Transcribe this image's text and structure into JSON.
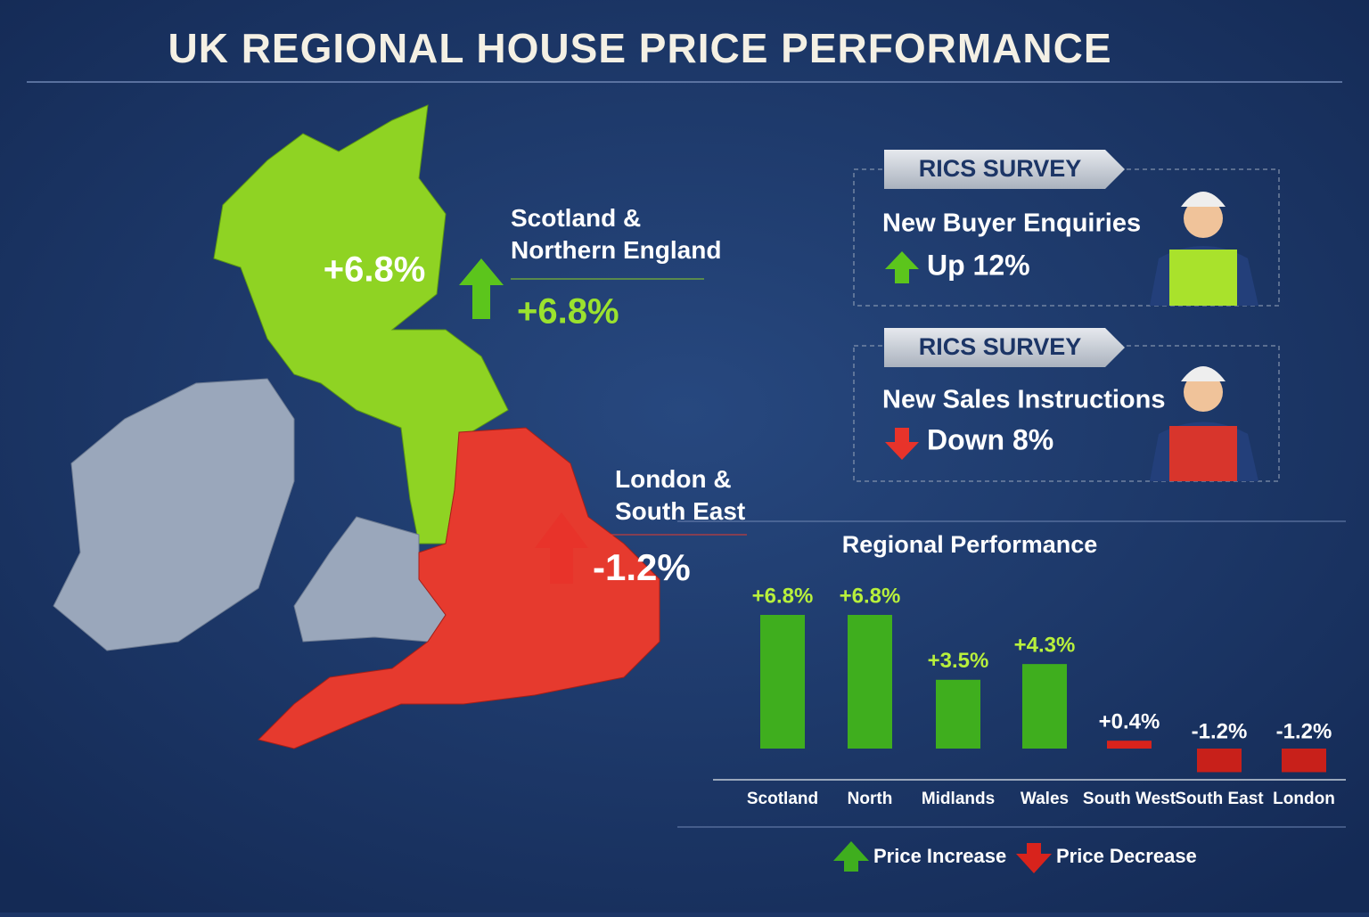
{
  "title": "UK Regional House Price Performance",
  "map": {
    "regions": [
      {
        "name": "Scotland & Northern England",
        "map_label": "+6.8%",
        "change_label": "+6.8%"
      },
      {
        "name": "London & South East",
        "change_label": "-1.2%"
      }
    ]
  },
  "surveys": [
    {
      "header": "RICS SURVEY",
      "metric": "New Buyer Enquiries",
      "change": "Up 12%"
    },
    {
      "header": "RICS SURVEY",
      "metric": "New Sales Instructions",
      "change": "Down 8%"
    }
  ],
  "chart_data": {
    "type": "bar",
    "title": "Regional Performance",
    "categories": [
      "Scotland",
      "North",
      "Midlands",
      "Wales",
      "South West",
      "South East",
      "London"
    ],
    "values": [
      6.8,
      6.8,
      3.5,
      4.3,
      0.4,
      -1.2,
      -1.2
    ],
    "value_labels": [
      "+6.8%",
      "+6.8%",
      "+3.5%",
      "+4.3%",
      "+0.4%",
      "-1.2%",
      "-1.2%"
    ],
    "colors": [
      "#3fae1e",
      "#3fae1e",
      "#3fae1e",
      "#3fae1e",
      "#d8231c",
      "#c8201a",
      "#c8201a"
    ],
    "legend": [
      {
        "name": "Price Increase",
        "color": "#3fae1e"
      },
      {
        "name": "Price Decrease",
        "color": "#d8231c"
      }
    ]
  }
}
